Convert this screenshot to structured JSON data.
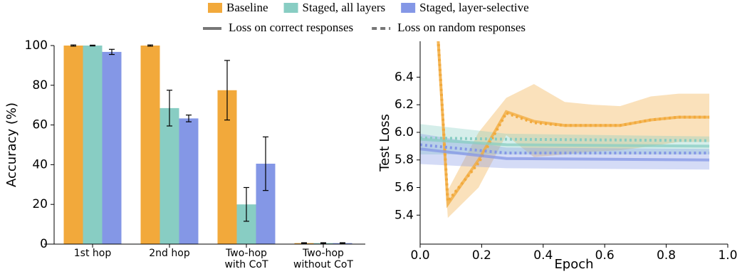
{
  "chart_data": [
    {
      "type": "bar",
      "ylabel": "Accuracy (%)",
      "categories": [
        "1st hop",
        "2nd hop",
        "Two-hop\nwith CoT",
        "Two-hop\nwithout CoT"
      ],
      "series": [
        {
          "name": "Baseline",
          "color": "#f2a93b",
          "values": [
            100,
            100,
            77.5,
            0.5
          ],
          "errors": [
            0.3,
            0.3,
            15,
            0.2
          ]
        },
        {
          "name": "Staged, all layers",
          "color": "#88cdc3",
          "values": [
            100,
            68.5,
            20,
            0.5
          ],
          "errors": [
            0.2,
            9,
            8.5,
            0.2
          ]
        },
        {
          "name": "Staged, layer-selective",
          "color": "#8497e6",
          "values": [
            96.8,
            63.3,
            40.5,
            0.5
          ],
          "errors": [
            1.3,
            1.7,
            13.5,
            0.2
          ]
        }
      ],
      "ylim": [
        0,
        100
      ],
      "yticks": [
        0,
        20,
        40,
        60,
        80,
        100
      ]
    },
    {
      "type": "line",
      "xlabel": "Epoch",
      "ylabel": "Test Loss",
      "xlim": [
        0,
        1
      ],
      "xticks": [
        {
          "value": 0,
          "label": "0.0"
        },
        {
          "value": 0.2,
          "label": "0.2"
        },
        {
          "value": 0.4,
          "label": "0.4"
        },
        {
          "value": 0.6,
          "label": "0.6"
        },
        {
          "value": 0.8,
          "label": "0.8"
        },
        {
          "value": 1,
          "label": "1.0"
        }
      ],
      "ylim": [
        5.19,
        6.66
      ],
      "yticks": [
        5.4,
        5.6,
        5.8,
        {
          "value": 6,
          "label": "6.0"
        },
        6.2,
        6.4
      ],
      "series": [
        {
          "color": "#f2a93b",
          "style": "solid",
          "x": [
            0.05,
            0.09,
            0.19,
            0.28,
            0.37,
            0.47,
            0.56,
            0.65,
            0.75,
            0.84,
            0.94
          ],
          "values": [
            7.0,
            5.48,
            5.8,
            6.15,
            6.08,
            6.05,
            6.05,
            6.05,
            6.09,
            6.11,
            6.11
          ],
          "lower": [
            6.8,
            5.38,
            5.6,
            5.98,
            5.82,
            5.84,
            5.86,
            5.87,
            5.9,
            5.93,
            5.93
          ],
          "upper": [
            7.2,
            5.58,
            6.0,
            6.25,
            6.35,
            6.22,
            6.2,
            6.19,
            6.26,
            6.28,
            6.28
          ]
        },
        {
          "color": "#f2a93b",
          "style": "dotted",
          "x": [
            0.05,
            0.09,
            0.19,
            0.28,
            0.37,
            0.47,
            0.56,
            0.65,
            0.75,
            0.84,
            0.94
          ],
          "values": [
            7.0,
            5.5,
            5.78,
            6.14,
            6.07,
            6.05,
            6.05,
            6.05,
            6.09,
            6.11,
            6.11
          ]
        },
        {
          "color": "#88cdc3",
          "style": "solid",
          "x": [
            0,
            0.28,
            0.94
          ],
          "values": [
            5.95,
            5.91,
            5.9
          ],
          "lower": [
            5.84,
            5.84,
            5.84
          ],
          "upper": [
            6.06,
            5.99,
            5.97
          ]
        },
        {
          "color": "#88cdc3",
          "style": "dotted",
          "x": [
            0,
            0.28,
            0.94
          ],
          "values": [
            5.96,
            5.95,
            5.94
          ]
        },
        {
          "color": "#8497e6",
          "style": "solid",
          "x": [
            0,
            0.28,
            0.94
          ],
          "values": [
            5.88,
            5.81,
            5.8
          ],
          "lower": [
            5.77,
            5.74,
            5.73
          ],
          "upper": [
            5.99,
            5.89,
            5.88
          ]
        },
        {
          "color": "#8497e6",
          "style": "dotted",
          "x": [
            0,
            0.28,
            0.94
          ],
          "values": [
            5.91,
            5.85,
            5.85
          ]
        }
      ]
    }
  ],
  "legend": {
    "items": [
      {
        "label": "Loss on correct responses",
        "style": "solid"
      },
      {
        "label": "Loss on random responses",
        "style": "dotted"
      }
    ]
  }
}
